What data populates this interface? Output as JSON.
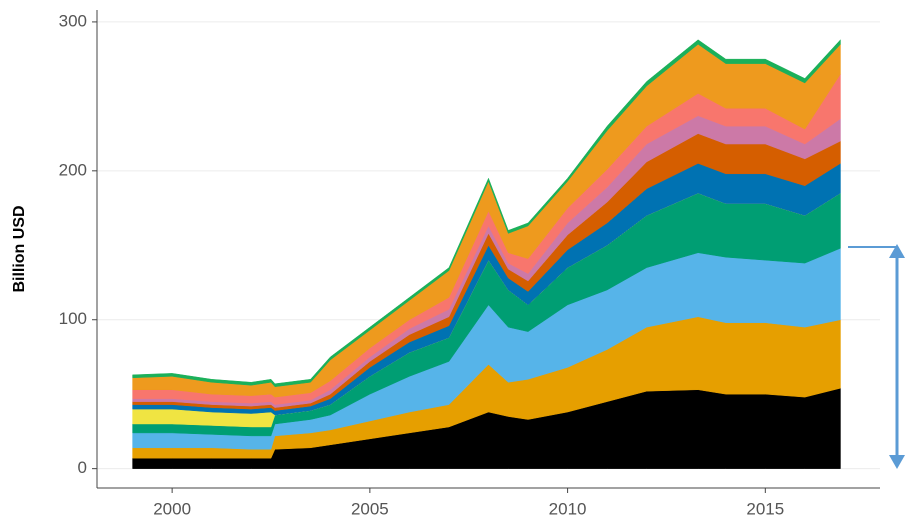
{
  "chart_data": {
    "type": "stacked-area",
    "y_label": "Billion USD",
    "x": [
      1999,
      2000,
      2001,
      2002,
      2002.5,
      2002.6,
      2003.5,
      2004,
      2005,
      2006,
      2007,
      2008,
      2008.5,
      2009,
      2010,
      2011,
      2012,
      2013.3,
      2014,
      2015,
      2016,
      2016.9
    ],
    "xlim": [
      1998.1,
      2017.9
    ],
    "xticks": [
      2000,
      2005,
      2010,
      2015
    ],
    "ylim": [
      -13,
      308
    ],
    "yticks": [
      0,
      100,
      200,
      300
    ],
    "grid": true,
    "series": [
      {
        "color": "#000000",
        "values": [
          7,
          7,
          7,
          7,
          7,
          13,
          14,
          16,
          20,
          24,
          28,
          38,
          35,
          33,
          38,
          45,
          52,
          53,
          50,
          50,
          48,
          54
        ]
      },
      {
        "color": "#E69F00",
        "values": [
          7,
          7,
          7,
          6,
          6,
          9,
          10,
          10,
          12,
          14,
          15,
          32,
          23,
          27,
          30,
          35,
          43,
          49,
          48,
          48,
          47,
          46
        ]
      },
      {
        "color": "#56B4E9",
        "values": [
          10,
          10,
          9,
          9,
          9,
          8,
          9,
          10,
          18,
          24,
          29,
          40,
          37,
          32,
          42,
          40,
          40,
          43,
          44,
          42,
          43,
          48
        ]
      },
      {
        "color": "#009E73",
        "values": [
          6,
          6,
          6,
          6,
          6,
          6,
          6,
          7,
          12,
          16,
          16,
          30,
          25,
          18,
          25,
          30,
          35,
          40,
          36,
          38,
          32,
          37
        ]
      },
      {
        "color": "#F0E442",
        "values": [
          10,
          10,
          9,
          9,
          10,
          0,
          0,
          0,
          0,
          0,
          0,
          0,
          0,
          0,
          0,
          0,
          0,
          0,
          0,
          0,
          0,
          0
        ]
      },
      {
        "color": "#0072B2",
        "values": [
          3,
          3,
          3,
          3,
          3,
          3,
          3,
          4,
          6,
          7,
          8,
          10,
          8,
          9,
          12,
          15,
          18,
          20,
          20,
          20,
          20,
          20
        ]
      },
      {
        "color": "#D55E00",
        "values": [
          2,
          2,
          2,
          2,
          2,
          2,
          2,
          3,
          4,
          5,
          6,
          8,
          6,
          7,
          10,
          14,
          18,
          20,
          20,
          20,
          18,
          15
        ]
      },
      {
        "color": "#CC79A7",
        "values": [
          2,
          2,
          2,
          2,
          2,
          2,
          2,
          3,
          3,
          4,
          5,
          5,
          4,
          5,
          8,
          10,
          12,
          12,
          12,
          12,
          10,
          15
        ]
      },
      {
        "color": "#F8766D",
        "values": [
          6,
          6,
          5,
          5,
          5,
          5,
          5,
          6,
          6,
          6,
          8,
          10,
          7,
          10,
          10,
          12,
          12,
          15,
          12,
          12,
          10,
          30
        ]
      },
      {
        "color": "#EE9A1E",
        "values": [
          8,
          9,
          8,
          7,
          8,
          7,
          7,
          14,
          12,
          13,
          18,
          20,
          13,
          22,
          18,
          26,
          27,
          33,
          30,
          30,
          31,
          20
        ]
      },
      {
        "color": "#1BB05A",
        "values": [
          2,
          2,
          2,
          2,
          2,
          2,
          2,
          2,
          2,
          2,
          2,
          2,
          2,
          2,
          2,
          3,
          3,
          3,
          3,
          3,
          3,
          3
        ]
      }
    ]
  }
}
